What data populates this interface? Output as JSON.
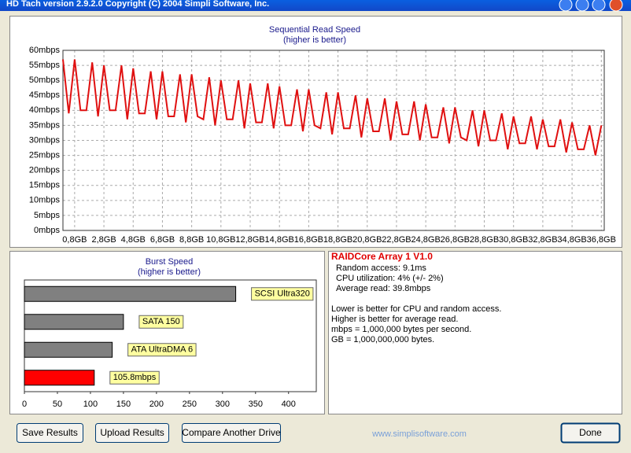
{
  "window": {
    "title": "HD Tach version 2.9.2.0 Copyright (C) 2004 Simpli Software, Inc."
  },
  "chart_data": [
    {
      "type": "line",
      "title": "Sequential Read Speed",
      "subtitle": "(higher is better)",
      "color": "#e01010",
      "grid": true,
      "x": [
        0,
        0.4,
        0.8,
        1.2,
        1.6,
        2.0,
        2.4,
        2.8,
        3.2,
        3.6,
        4.0,
        4.4,
        4.8,
        5.2,
        5.6,
        6.0,
        6.4,
        6.8,
        7.2,
        7.6,
        8.0,
        8.4,
        8.8,
        9.2,
        9.6,
        10.0,
        10.4,
        10.8,
        11.2,
        11.6,
        12.0,
        12.4,
        12.8,
        13.2,
        13.6,
        14.0,
        14.4,
        14.8,
        15.2,
        15.6,
        16.0,
        16.4,
        16.8,
        17.2,
        17.6,
        18.0,
        18.4,
        18.8,
        19.2,
        19.6,
        20.0,
        20.4,
        20.8,
        21.2,
        21.6,
        22.0,
        22.4,
        22.8,
        23.2,
        23.6,
        24.0,
        24.4,
        24.8,
        25.2,
        25.6,
        26.0,
        26.4,
        26.8,
        27.2,
        27.6,
        28.0,
        28.4,
        28.8,
        29.2,
        29.6,
        30.0,
        30.4,
        30.8,
        31.2,
        31.6,
        32.0,
        32.4,
        32.8,
        33.2,
        33.6,
        34.0,
        34.4,
        34.8,
        35.2,
        35.6,
        36.0,
        36.4,
        36.8
      ],
      "values": [
        57,
        39,
        57,
        40,
        40,
        56,
        38,
        55,
        40,
        40,
        55,
        37,
        54,
        39,
        39,
        53,
        37,
        53,
        38,
        38,
        52,
        36,
        52,
        38,
        37,
        51,
        35,
        50,
        37,
        37,
        50,
        34,
        49,
        36,
        36,
        49,
        34,
        48,
        35,
        35,
        47,
        33,
        47,
        35,
        34,
        46,
        32,
        46,
        34,
        34,
        45,
        31,
        44,
        33,
        33,
        44,
        30,
        43,
        32,
        32,
        43,
        30,
        42,
        31,
        31,
        41,
        29,
        41,
        31,
        30,
        40,
        28,
        40,
        30,
        30,
        39,
        27,
        38,
        29,
        29,
        38,
        27,
        37,
        28,
        28,
        37,
        26,
        36,
        27,
        27,
        35,
        25,
        35
      ],
      "xlim": [
        0,
        37
      ],
      "xticks": [
        {
          "value": 0.8,
          "label": "0,8GB"
        },
        {
          "value": 2.8,
          "label": "2,8GB"
        },
        {
          "value": 4.8,
          "label": "4,8GB"
        },
        {
          "value": 6.8,
          "label": "6,8GB"
        },
        {
          "value": 8.8,
          "label": "8,8GB"
        },
        {
          "value": 10.8,
          "label": "10,8GB"
        },
        {
          "value": 12.8,
          "label": "12,8GB"
        },
        {
          "value": 14.8,
          "label": "14,8GB"
        },
        {
          "value": 16.8,
          "label": "16,8GB"
        },
        {
          "value": 18.8,
          "label": "18,8GB"
        },
        {
          "value": 20.8,
          "label": "20,8GB"
        },
        {
          "value": 22.8,
          "label": "22,8GB"
        },
        {
          "value": 24.8,
          "label": "24,8GB"
        },
        {
          "value": 26.8,
          "label": "26,8GB"
        },
        {
          "value": 28.8,
          "label": "28,8GB"
        },
        {
          "value": 30.8,
          "label": "30,8GB"
        },
        {
          "value": 32.8,
          "label": "32,8GB"
        },
        {
          "value": 34.8,
          "label": "34,8GB"
        },
        {
          "value": 36.8,
          "label": "36,8GB"
        }
      ],
      "ylim": [
        0,
        60
      ],
      "yticks": [
        {
          "value": 0,
          "label": "0mbps"
        },
        {
          "value": 5,
          "label": "5mbps"
        },
        {
          "value": 10,
          "label": "10mbps"
        },
        {
          "value": 15,
          "label": "15mbps"
        },
        {
          "value": 20,
          "label": "20mbps"
        },
        {
          "value": 25,
          "label": "25mbps"
        },
        {
          "value": 30,
          "label": "30mbps"
        },
        {
          "value": 35,
          "label": "35mbps"
        },
        {
          "value": 40,
          "label": "40mbps"
        },
        {
          "value": 45,
          "label": "45mbps"
        },
        {
          "value": 50,
          "label": "50mbps"
        },
        {
          "value": 55,
          "label": "55mbps"
        },
        {
          "value": 60,
          "label": "60mbps"
        }
      ]
    },
    {
      "type": "hbar",
      "title": "Burst Speed",
      "subtitle": "(higher is better)",
      "categories": [
        "SCSI Ultra320",
        "SATA 150",
        "ATA UltraDMA 6",
        "105.8mbps"
      ],
      "values": [
        320,
        150,
        133,
        105.8
      ],
      "colors": [
        "#808080",
        "#808080",
        "#808080",
        "#ff0000"
      ],
      "xlim": [
        0,
        442
      ],
      "xticks": [
        0,
        50,
        100,
        150,
        200,
        250,
        300,
        350,
        400
      ]
    }
  ],
  "info": {
    "title": "RAIDCore Array 1 V1.0",
    "lines": [
      "Random access: 9.1ms",
      "CPU utilization: 4% (+/- 2%)",
      "Average read: 39.8mbps"
    ],
    "notes": [
      "Lower is better for CPU and random access.",
      "Higher is better for average read.",
      "mbps = 1,000,000 bytes per second.",
      "GB = 1,000,000,000 bytes."
    ]
  },
  "buttons": [
    "Save Results",
    "Upload Results",
    "Compare Another Drive",
    "Done"
  ],
  "footer": {
    "url": "www.simplisoftware.com"
  }
}
